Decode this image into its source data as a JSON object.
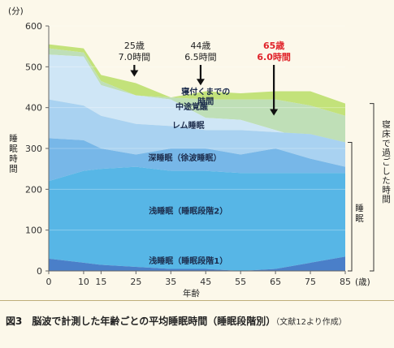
{
  "chart_data": {
    "type": "area",
    "y_unit": "(分)",
    "x_unit": "(歳)",
    "xlabel": "年齢",
    "ylabel": "睡眠時間",
    "x": [
      0,
      10,
      15,
      25,
      35,
      45,
      55,
      65,
      75,
      85
    ],
    "x_ticks": [
      "0",
      "10",
      "15",
      "25",
      "35",
      "45",
      "55",
      "65",
      "75",
      "85"
    ],
    "y_ticks": [
      0,
      100,
      200,
      300,
      400,
      500,
      600
    ],
    "ylim": [
      0,
      600
    ],
    "cumulative": {
      "stage1": [
        30,
        20,
        15,
        10,
        5,
        5,
        0,
        5,
        20,
        35
      ],
      "stage2": [
        220,
        245,
        250,
        255,
        245,
        245,
        240,
        240,
        240,
        240
      ],
      "slow_wave": [
        325,
        320,
        300,
        285,
        300,
        300,
        285,
        300,
        275,
        255
      ],
      "rem": [
        420,
        405,
        380,
        360,
        355,
        345,
        345,
        340,
        335,
        315
      ],
      "waso": [
        530,
        525,
        455,
        430,
        420,
        375,
        370,
        345,
        320,
        290
      ],
      "sleep_latency": [
        545,
        535,
        465,
        430,
        425,
        420,
        420,
        420,
        405,
        380
      ],
      "total": [
        555,
        545,
        480,
        460,
        425,
        440,
        435,
        440,
        440,
        410
      ]
    },
    "series_names": {
      "stage1": "浅睡眠（睡眠段階1）",
      "stage2": "浅睡眠（睡眠段階2）",
      "slow_wave": "深睡眠（徐波睡眠）",
      "rem": "レム睡眠",
      "waso": "中途覚醒",
      "sleep_latency": "寝付くまでの時間"
    },
    "colors": {
      "stage1": "#4a7fc9",
      "stage2": "#57b6e6",
      "slow_wave": "#77b7e8",
      "rem": "#a9d2f1",
      "waso": "#cfe6f6",
      "light_green": "#bfdfb7",
      "sleep_latency": "#9fd07a",
      "total": "#c3e27a"
    },
    "annotations": [
      {
        "age": "25歳",
        "time": "7.0時間",
        "x": 25,
        "highlight": false
      },
      {
        "age": "44歳",
        "time": "6.5時間",
        "x": 44,
        "highlight": false
      },
      {
        "age": "65歳",
        "time": "6.0時間",
        "x": 65,
        "highlight": true
      }
    ],
    "bracket_labels": {
      "sleep": "睡眠",
      "bed": "寝床で過ごした時間"
    }
  },
  "caption": {
    "main": "図3　脳波で計測した年齢ごとの平均睡眠時間（睡眠段階別）",
    "note": "（文献12より作成）"
  }
}
